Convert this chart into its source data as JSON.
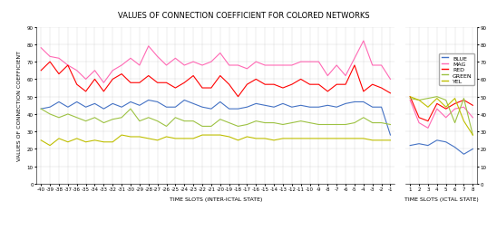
{
  "title": "VALUES OF CONNECTION COEFFICIENT FOR COLORED NETWORKS",
  "ylabel_left": "VALUES OF CONNECTION COEFFICIENT",
  "xlabel_preictal": "TIME SLOTS (INTER-ICTAL STATE)",
  "xlabel_ictal": "TIME SLOTS (ICTAL STATE)",
  "preictal_x": [
    -40,
    -39,
    -38,
    -37,
    -36,
    -35,
    -34,
    -33,
    -32,
    -31,
    -30,
    -29,
    -28,
    -27,
    -26,
    -25,
    -24,
    -23,
    -22,
    -21,
    -20,
    -19,
    -18,
    -17,
    -16,
    -15,
    -14,
    -13,
    -12,
    -11,
    -10,
    -9,
    -8,
    -7,
    -6,
    -5,
    -4,
    -3,
    -2,
    -1
  ],
  "ictal_x": [
    1,
    2,
    3,
    4,
    5,
    6,
    7,
    8
  ],
  "blue_pre": [
    43,
    44,
    47,
    44,
    47,
    44,
    46,
    43,
    46,
    44,
    47,
    45,
    48,
    47,
    44,
    44,
    48,
    46,
    44,
    43,
    47,
    43,
    43,
    44,
    46,
    45,
    44,
    46,
    44,
    45,
    44,
    44,
    45,
    44,
    46,
    47,
    47,
    44,
    44,
    28
  ],
  "mag_pre": [
    78,
    73,
    72,
    68,
    65,
    60,
    65,
    58,
    65,
    68,
    72,
    68,
    79,
    73,
    68,
    72,
    68,
    70,
    68,
    70,
    75,
    68,
    68,
    66,
    70,
    68,
    68,
    68,
    68,
    70,
    70,
    70,
    62,
    68,
    62,
    72,
    82,
    68,
    68,
    60
  ],
  "red_pre": [
    65,
    70,
    63,
    68,
    57,
    53,
    60,
    53,
    60,
    63,
    58,
    58,
    62,
    58,
    58,
    55,
    58,
    62,
    55,
    55,
    62,
    57,
    50,
    57,
    60,
    57,
    57,
    55,
    57,
    60,
    57,
    57,
    53,
    57,
    57,
    68,
    53,
    57,
    55,
    52
  ],
  "green_pre": [
    43,
    40,
    38,
    40,
    38,
    36,
    38,
    35,
    37,
    38,
    43,
    36,
    38,
    36,
    33,
    38,
    36,
    36,
    33,
    33,
    37,
    35,
    33,
    34,
    36,
    35,
    35,
    34,
    35,
    36,
    35,
    34,
    34,
    34,
    34,
    35,
    38,
    35,
    35,
    34
  ],
  "yel_pre": [
    25,
    22,
    26,
    24,
    26,
    24,
    25,
    24,
    24,
    28,
    27,
    27,
    26,
    25,
    27,
    26,
    26,
    26,
    28,
    28,
    28,
    27,
    25,
    27,
    26,
    26,
    25,
    26,
    26,
    26,
    26,
    26,
    26,
    26,
    26,
    26,
    26,
    25,
    25,
    25
  ],
  "blue_ict": [
    22,
    23,
    22,
    25,
    24,
    21,
    17,
    20
  ],
  "mag_ict": [
    48,
    35,
    32,
    43,
    38,
    43,
    44,
    38
  ],
  "red_ict": [
    50,
    38,
    36,
    46,
    43,
    46,
    48,
    45
  ],
  "green_ict": [
    49,
    48,
    49,
    50,
    48,
    35,
    49,
    28
  ],
  "yel_ict": [
    50,
    48,
    44,
    49,
    44,
    49,
    36,
    28
  ],
  "colors": {
    "blue": "#4472C4",
    "mag": "#FF69B4",
    "red": "#FF0000",
    "green": "#9DC243",
    "yel": "#BFBF00"
  },
  "ylim": [
    0,
    90
  ],
  "yticks_left": [
    0,
    10,
    20,
    30,
    40,
    50,
    60,
    70,
    80,
    90
  ],
  "yticks_right": [
    0,
    10,
    20,
    30,
    40,
    50,
    60,
    70,
    80,
    90
  ],
  "title_fontsize": 6,
  "label_fontsize": 4.5,
  "tick_fontsize": 4.0,
  "legend_fontsize": 4.5,
  "lw": 0.8
}
